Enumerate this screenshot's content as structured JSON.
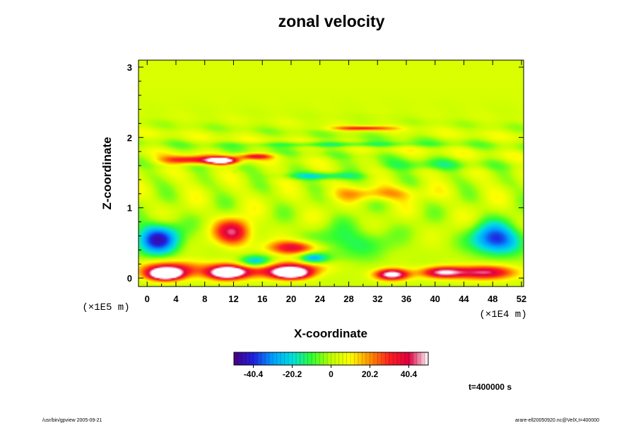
{
  "chart_data": {
    "type": "heatmap",
    "title": "zonal velocity",
    "xlabel": "X-coordinate",
    "ylabel": "Z-coordinate",
    "x_scale_label": "(×1E4 m)",
    "y_scale_label": "(×1E5 m)",
    "x_ticks": [
      0,
      4,
      8,
      12,
      16,
      20,
      24,
      28,
      32,
      36,
      40,
      44,
      48,
      52
    ],
    "y_ticks": [
      0,
      1,
      2,
      3
    ],
    "xlim": [
      -1.2,
      52.3
    ],
    "ylim": [
      -0.12,
      3.1
    ],
    "colorbar": {
      "min": -50.5,
      "max": 50.5,
      "ticks": [
        -40.4,
        -20.2,
        0,
        20.2,
        40.4
      ],
      "colors": [
        "#4a0080",
        "#2020e0",
        "#00a0ff",
        "#00e0e0",
        "#30ff30",
        "#c0ff00",
        "#ffff00",
        "#ff9000",
        "#ff2020",
        "#e00040",
        "#ffffff"
      ]
    },
    "colorbar_ticks_text": [
      "-40.4",
      "-20.2",
      "0",
      "20.2",
      "40.4"
    ],
    "features": [
      {
        "x": 2.5,
        "z": 0.05,
        "value": 60,
        "sx": 2.2,
        "sz": 0.08
      },
      {
        "x": 3.0,
        "z": 0.12,
        "value": 38,
        "sx": 4.0,
        "sz": 0.12
      },
      {
        "x": 11.0,
        "z": 0.07,
        "value": 55,
        "sx": 2.4,
        "sz": 0.09
      },
      {
        "x": 13.0,
        "z": 0.12,
        "value": 30,
        "sx": 5.0,
        "sz": 0.12
      },
      {
        "x": 20.0,
        "z": 0.06,
        "value": 60,
        "sx": 2.6,
        "sz": 0.08
      },
      {
        "x": 20.0,
        "z": 0.15,
        "value": 30,
        "sx": 5.0,
        "sz": 0.1
      },
      {
        "x": 34.0,
        "z": 0.05,
        "value": 55,
        "sx": 2.3,
        "sz": 0.08
      },
      {
        "x": 41.0,
        "z": 0.08,
        "value": 45,
        "sx": 3.0,
        "sz": 0.08
      },
      {
        "x": 47.0,
        "z": 0.08,
        "value": 42,
        "sx": 4.0,
        "sz": 0.1
      },
      {
        "x": 1.5,
        "z": 0.55,
        "value": -45,
        "sx": 3.0,
        "sz": 0.22
      },
      {
        "x": 15.0,
        "z": 0.22,
        "value": -40,
        "sx": 2.5,
        "sz": 0.1
      },
      {
        "x": 23.0,
        "z": 0.28,
        "value": -30,
        "sx": 2.0,
        "sz": 0.08
      },
      {
        "x": 48.5,
        "z": 0.55,
        "value": -42,
        "sx": 3.5,
        "sz": 0.22
      },
      {
        "x": 12.0,
        "z": 0.65,
        "value": 40,
        "sx": 2.5,
        "sz": 0.18
      },
      {
        "x": 20.5,
        "z": 0.43,
        "value": 38,
        "sx": 3.5,
        "sz": 0.1
      },
      {
        "x": 28.0,
        "z": 0.5,
        "value": -15,
        "sx": 6.0,
        "sz": 0.25
      },
      {
        "x": 6.0,
        "z": 1.68,
        "value": 35,
        "sx": 4.0,
        "sz": 0.06
      },
      {
        "x": 10.5,
        "z": 1.67,
        "value": 55,
        "sx": 2.2,
        "sz": 0.05
      },
      {
        "x": 15.0,
        "z": 1.73,
        "value": 30,
        "sx": 2.5,
        "sz": 0.04
      },
      {
        "x": 24.0,
        "z": 1.45,
        "value": -22,
        "sx": 5.0,
        "sz": 0.05
      },
      {
        "x": 32.0,
        "z": 1.2,
        "value": 18,
        "sx": 6.0,
        "sz": 0.1
      },
      {
        "x": 30.0,
        "z": 2.13,
        "value": 30,
        "sx": 4.0,
        "sz": 0.03
      },
      {
        "x": 26.0,
        "z": 1.9,
        "value": -18,
        "sx": 12.0,
        "sz": 0.04
      },
      {
        "x": 38.0,
        "z": 1.6,
        "value": -12,
        "sx": 8.0,
        "sz": 0.08
      }
    ]
  },
  "annotations": {
    "time_label": "t=400000 s",
    "footer_left": "/usr/bin/gpview 2005-09-21",
    "footer_right": "arare-ell20050920.nc@VelX,t=400000"
  }
}
